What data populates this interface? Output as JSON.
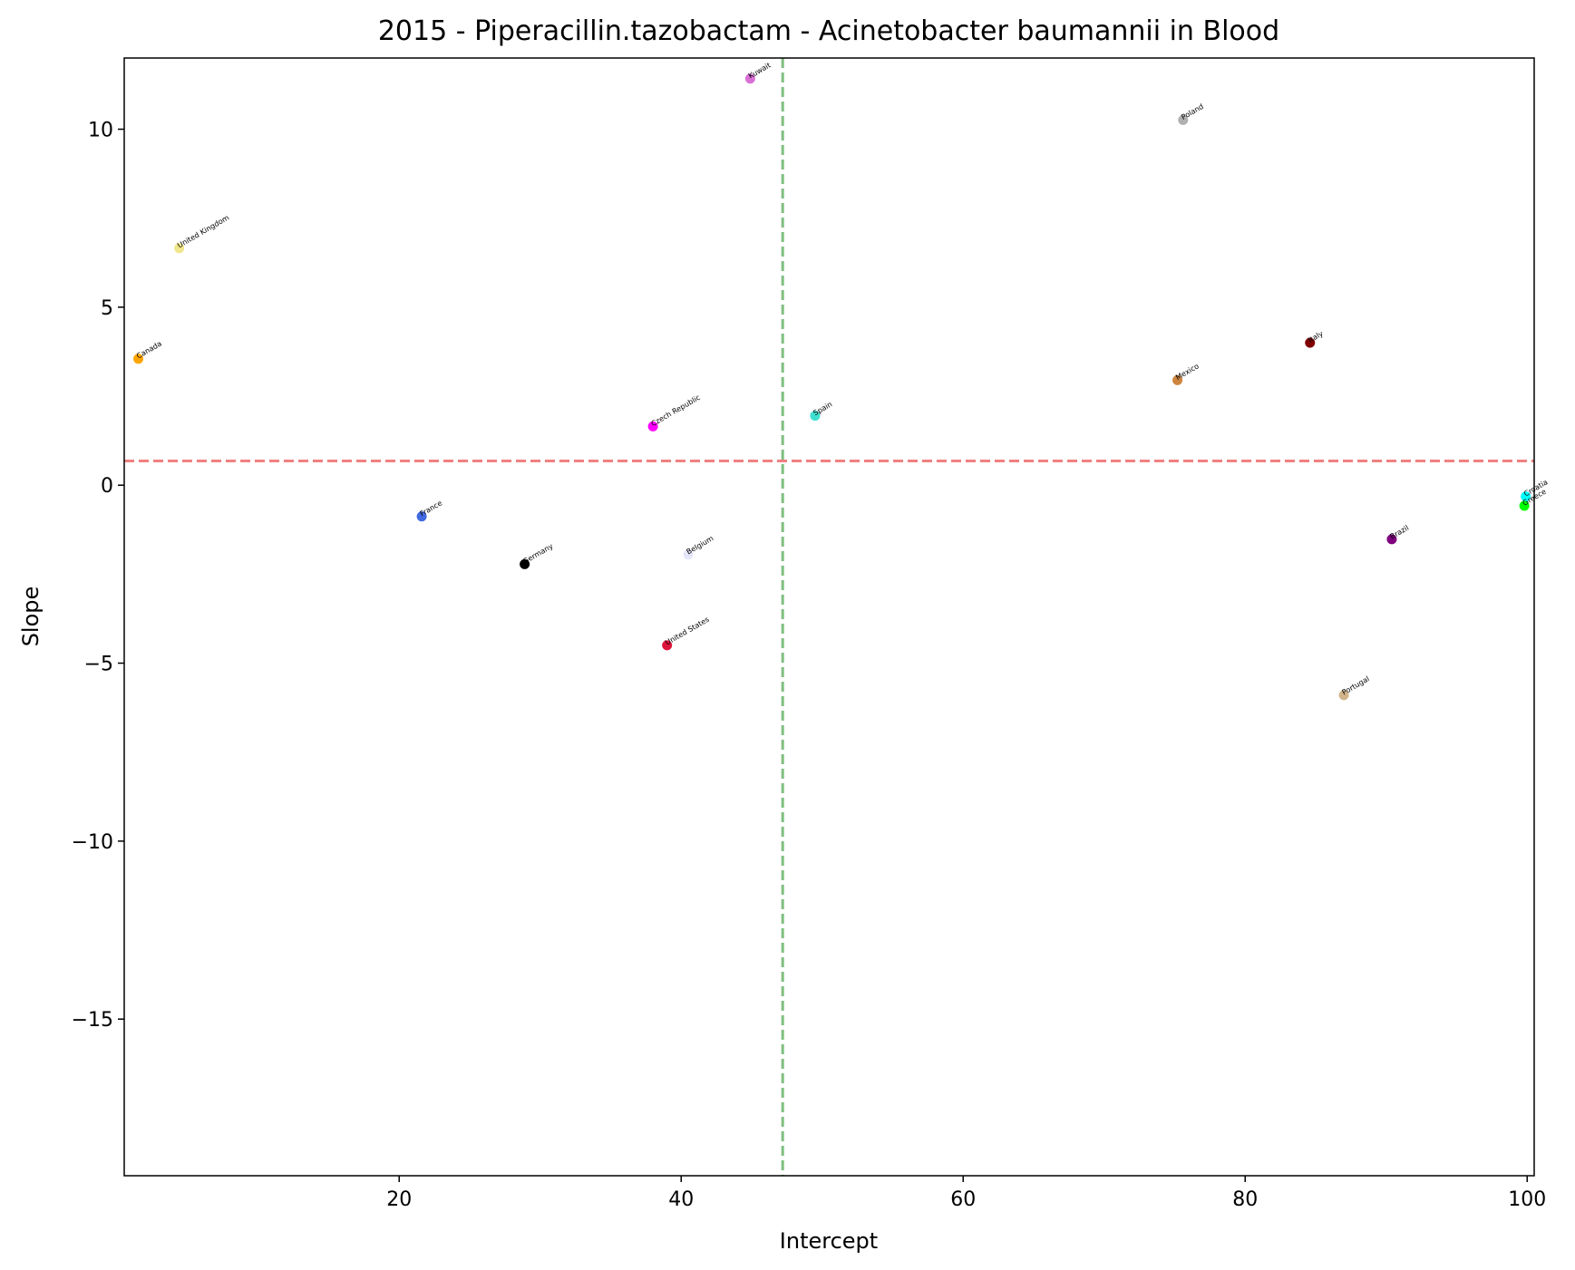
{
  "chart_data": {
    "type": "scatter",
    "title": "2015 - Piperacillin.tazobactam - Acinetobacter baumannii in Blood",
    "xlabel": "Intercept",
    "ylabel": "Slope",
    "xlim": [
      0.5,
      100.5
    ],
    "ylim": [
      -19.4,
      12.0
    ],
    "xticks": [
      20,
      40,
      60,
      80,
      100
    ],
    "yticks": [
      -15,
      -10,
      -5,
      0,
      5,
      10
    ],
    "xtick_labels": [
      "20",
      "40",
      "60",
      "80",
      "100"
    ],
    "ytick_labels": [
      "−15",
      "−10",
      "−5",
      "0",
      "5",
      "10"
    ],
    "grid": false,
    "reference_lines": {
      "vertical_x": 47.2,
      "vertical_color": "#7fbf7f",
      "horizontal_y": 0.68,
      "horizontal_color": "#f08080"
    },
    "points": [
      {
        "label": "Kuwait",
        "x": 44.9,
        "y": 11.42,
        "color": "#da70d6"
      },
      {
        "label": "Poland",
        "x": 75.6,
        "y": 10.26,
        "color": "#b0b0b0"
      },
      {
        "label": "United Kingdom",
        "x": 4.4,
        "y": 6.66,
        "color": "#f0e68c"
      },
      {
        "label": "Canada",
        "x": 1.5,
        "y": 3.55,
        "color": "#ffa500"
      },
      {
        "label": "Italy",
        "x": 84.6,
        "y": 4.0,
        "color": "#800000"
      },
      {
        "label": "Mexico",
        "x": 75.2,
        "y": 2.95,
        "color": "#cd853f"
      },
      {
        "label": "Czech Republic",
        "x": 38.0,
        "y": 1.65,
        "color": "#ff00ff"
      },
      {
        "label": "Spain",
        "x": 49.5,
        "y": 1.95,
        "color": "#40e0d0"
      },
      {
        "label": "Croatia",
        "x": 99.9,
        "y": -0.32,
        "color": "#00ffff"
      },
      {
        "label": "Greece",
        "x": 99.8,
        "y": -0.58,
        "color": "#00ff00"
      },
      {
        "label": "France",
        "x": 21.6,
        "y": -0.88,
        "color": "#4169e1"
      },
      {
        "label": "Brazil",
        "x": 90.4,
        "y": -1.52,
        "color": "#800080"
      },
      {
        "label": "Belgium",
        "x": 40.5,
        "y": -1.95,
        "color": "#e6e6fa"
      },
      {
        "label": "Germany",
        "x": 28.9,
        "y": -2.22,
        "color": "#000000"
      },
      {
        "label": "United States",
        "x": 39.0,
        "y": -4.5,
        "color": "#dc143c"
      },
      {
        "label": "Portugal",
        "x": 87.0,
        "y": -5.9,
        "color": "#d2b48c"
      }
    ]
  }
}
